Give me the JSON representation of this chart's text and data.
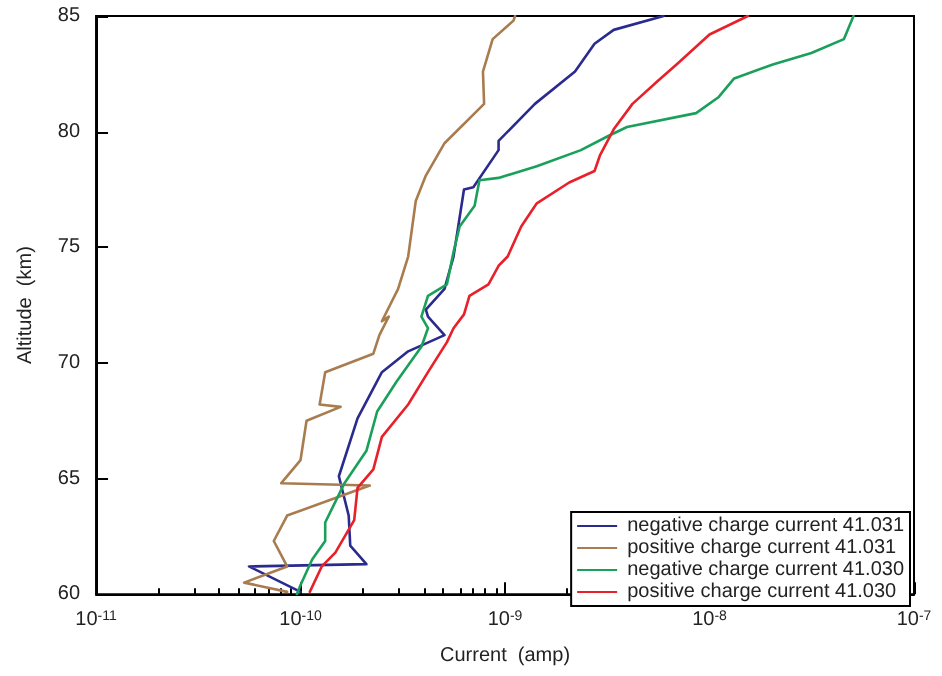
{
  "chart_data": {
    "type": "line",
    "xlabel": "Current  (amp)",
    "ylabel": "Altitude  (km)",
    "log": "x",
    "xlim": [
      1e-11,
      1e-07
    ],
    "ylim": [
      60,
      85
    ],
    "xticks": [
      {
        "value": 1e-11,
        "label": "10$^{-11}$"
      },
      {
        "value": 1e-10,
        "label": "10$^{-10}$"
      },
      {
        "value": 1e-09,
        "label": "10$^{-9}$"
      },
      {
        "value": 1e-08,
        "label": "10$^{-8}$"
      },
      {
        "value": 1e-07,
        "label": "10$^{-7}$"
      }
    ],
    "yticks": [
      60,
      65,
      70,
      75,
      80,
      85
    ],
    "grid": false,
    "legend": "bottom right",
    "marker": "none",
    "line_style": "solid",
    "series": [
      {
        "name": "negative charge current 41.031",
        "color": "#2b2b8f",
        "x": [
          1e-10,
          5.6e-11,
          2.1e-10,
          1.75e-10,
          1.72e-10,
          1.54e-10,
          1.9e-10,
          2.5e-10,
          3.36e-10,
          5.06e-10,
          4.2e-10,
          4.1e-10,
          5.06e-10,
          5.6e-10,
          6.3e-10,
          7e-10,
          9.3e-10,
          9.3e-10,
          1.4e-09,
          2.2e-09,
          2.74e-09,
          3.4e-09,
          5.96e-09
        ],
        "values": [
          60.1,
          61.2,
          61.3,
          62.1,
          63.4,
          65.1,
          67.6,
          69.6,
          70.5,
          71.2,
          72,
          72.3,
          73.2,
          74.6,
          77.5,
          77.6,
          79.2,
          79.6,
          81.2,
          82.6,
          83.8,
          84.4,
          85
        ]
      },
      {
        "name": "positive charge current 41.031",
        "color": "#a87c4f",
        "x": [
          8.6e-11,
          5.3e-11,
          8.6e-11,
          7.4e-11,
          8.6e-11,
          2.18e-10,
          8.05e-11,
          1e-10,
          1.07e-10,
          1.57e-10,
          1.24e-10,
          1.32e-10,
          2.27e-10,
          2.43e-10,
          2.7e-10,
          2.5e-10,
          3e-10,
          3.36e-10,
          3.66e-10,
          4.1e-10,
          5.06e-10,
          7.9e-10,
          7.8e-10,
          8.7e-10,
          1.1e-09,
          1.12e-09
        ],
        "values": [
          60.1,
          60.5,
          61.2,
          62.3,
          63.4,
          64.7,
          64.8,
          65.8,
          67.5,
          68.1,
          68.2,
          69.6,
          70.4,
          71.2,
          72,
          71.8,
          73.2,
          74.6,
          77,
          78.1,
          79.5,
          81.2,
          82.6,
          84,
          84.8,
          85
        ]
      },
      {
        "name": "negative charge current 41.030",
        "color": "#1aa05a",
        "x": [
          9.6e-11,
          1e-10,
          1.14e-10,
          1.32e-10,
          1.32e-10,
          1.64e-10,
          2.1e-10,
          2.37e-10,
          2.95e-10,
          3.9e-10,
          4.2e-10,
          3.9e-10,
          4.2e-10,
          5.2e-10,
          5.6e-10,
          6e-10,
          7.1e-10,
          7.5e-10,
          9.3e-10,
          1.43e-09,
          2.35e-09,
          3.18e-09,
          3.95e-09,
          8.6e-09,
          1.11e-08,
          1.32e-08,
          2.04e-08,
          3.15e-08,
          4.54e-08,
          5.06e-08
        ],
        "values": [
          60,
          60.4,
          61.5,
          62.3,
          63.1,
          64.8,
          66.2,
          67.9,
          69.2,
          70.7,
          71.5,
          72,
          72.9,
          73.4,
          74.8,
          75.9,
          76.8,
          77.9,
          78,
          78.5,
          79.2,
          79.8,
          80.2,
          80.8,
          81.5,
          82.3,
          82.9,
          83.4,
          84,
          85
        ]
      },
      {
        "name": "positive charge current 41.030",
        "color": "#e8202a",
        "x": [
          1.11e-10,
          1.27e-10,
          1.48e-10,
          1.83e-10,
          1.9e-10,
          2.27e-10,
          2.5e-10,
          3.36e-10,
          4.2e-10,
          5.2e-10,
          5.6e-10,
          6.3e-10,
          6.7e-10,
          8.3e-10,
          9.3e-10,
          1.03e-09,
          1.2e-09,
          1.43e-09,
          2.06e-09,
          2.74e-09,
          2.92e-09,
          3.4e-09,
          4.2e-09,
          5.6e-09,
          6.9e-09,
          1e-08,
          1.54e-08
        ],
        "values": [
          60.1,
          61.2,
          61.8,
          63.2,
          64.6,
          65.4,
          66.8,
          68.2,
          69.6,
          70.9,
          71.5,
          72.1,
          72.9,
          73.4,
          74.2,
          74.6,
          75.9,
          76.9,
          77.8,
          78.3,
          79,
          80.1,
          81.2,
          82.2,
          82.9,
          84.2,
          85
        ]
      }
    ]
  }
}
